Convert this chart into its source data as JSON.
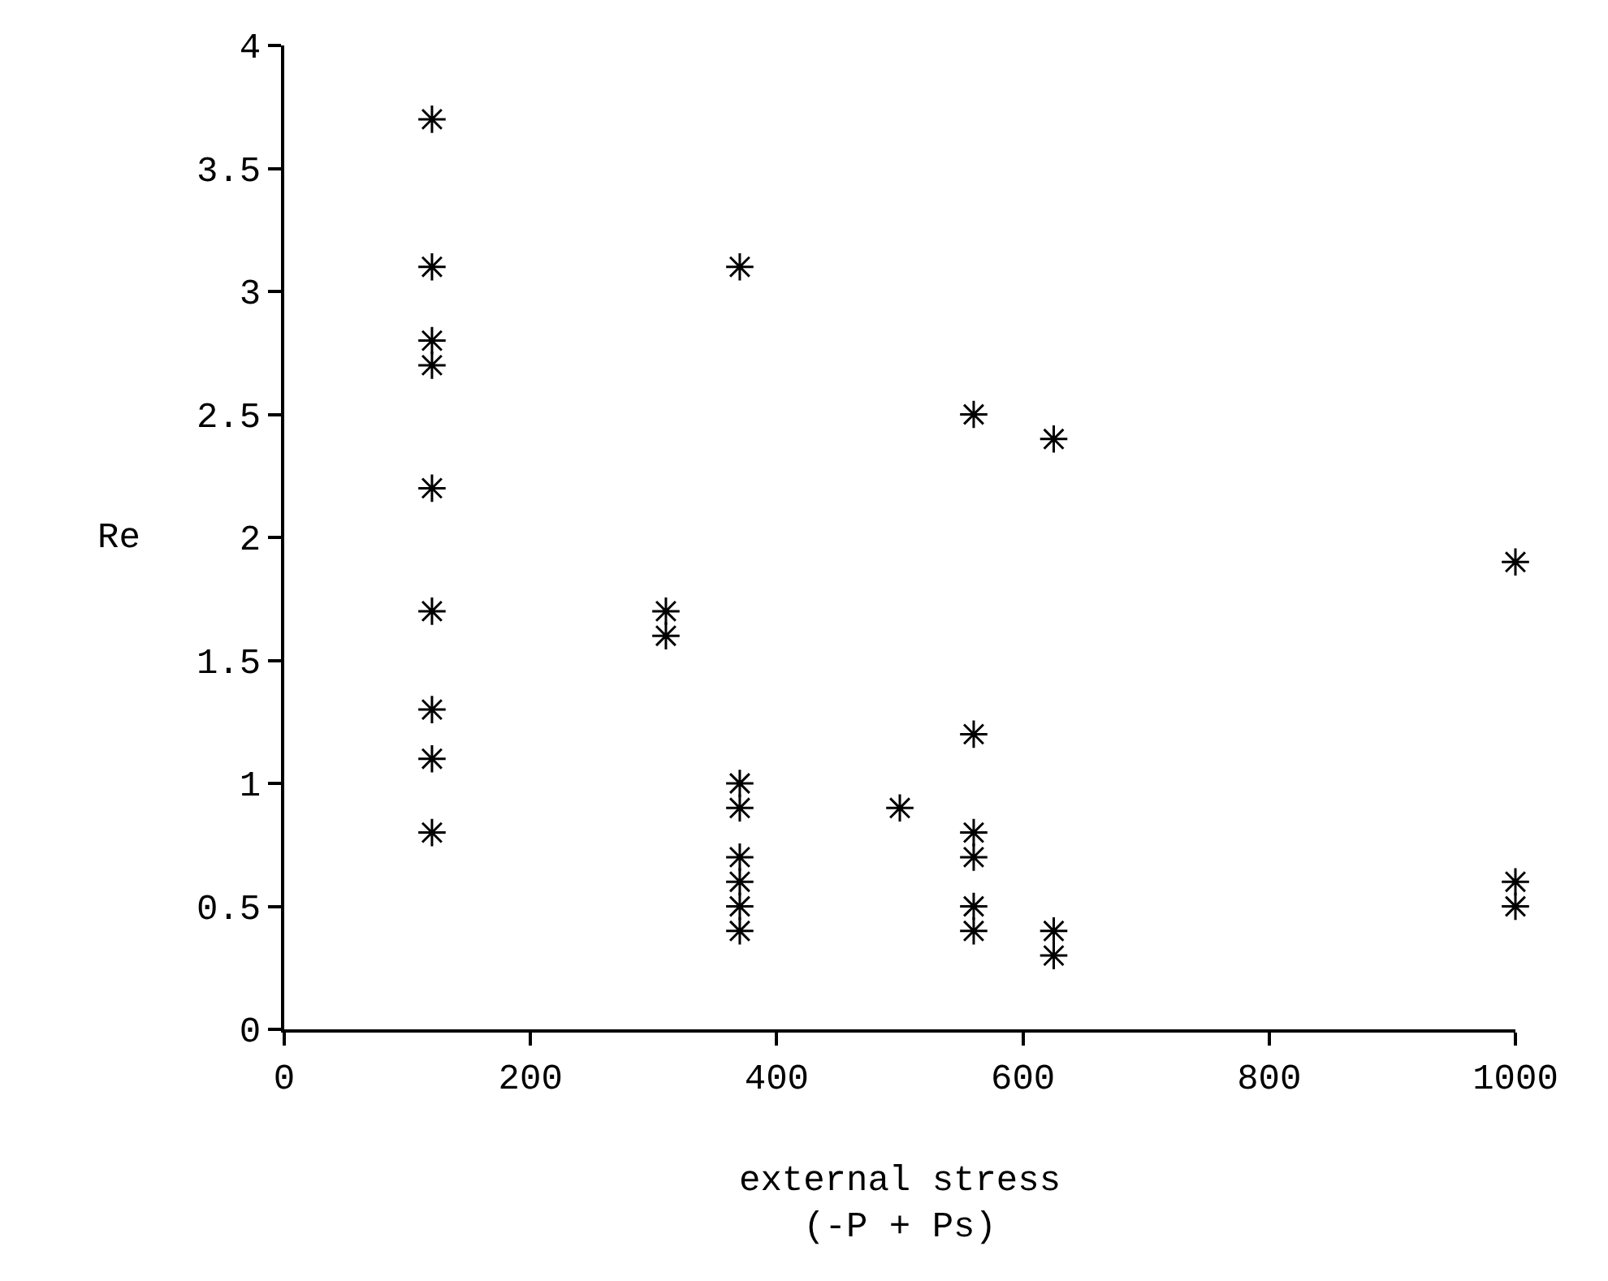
{
  "chart_data": {
    "type": "scatter",
    "xlabel": "external stress\n(-P + Ps)",
    "ylabel": "Re",
    "x": [
      120,
      120,
      120,
      120,
      120,
      120,
      120,
      120,
      120,
      310,
      310,
      370,
      370,
      370,
      370,
      370,
      370,
      370,
      500,
      560,
      560,
      560,
      560,
      560,
      560,
      625,
      625,
      625,
      1000,
      1000,
      1000
    ],
    "series": [
      {
        "color": "#000000",
        "values": [
          3.7,
          3.1,
          2.8,
          2.7,
          2.2,
          1.7,
          1.3,
          1.1,
          0.8,
          1.7,
          1.6,
          3.1,
          1.0,
          0.9,
          0.7,
          0.6,
          0.5,
          0.4,
          0.9,
          2.5,
          1.2,
          0.8,
          0.7,
          0.5,
          0.4,
          2.4,
          0.4,
          0.3,
          1.9,
          0.6,
          0.5
        ]
      }
    ],
    "xlim": [
      0,
      1000
    ],
    "xticks": [
      0,
      200,
      400,
      600,
      800,
      1000
    ],
    "ylim": [
      0,
      4
    ],
    "yticks": [
      0,
      0.5,
      1,
      1.5,
      2,
      2.5,
      3,
      3.5,
      4
    ],
    "marker": "cross"
  }
}
